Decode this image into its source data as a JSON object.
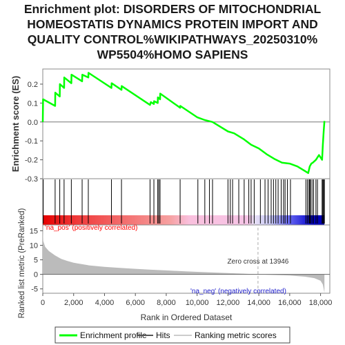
{
  "title_lines": [
    "Enrichment plot: DISORDERS OF MITOCHONDRIAL",
    "HOMEOSTATIS DYNAMICS PROTEIN IMPORT AND",
    "QUALITY CONTROL%WIKIPATHWAYS_20250310%",
    "WP5504%HOMO SAPIENS"
  ],
  "colors": {
    "enrichment_line": "#00ff00",
    "hits": "#000000",
    "metric_fill": "#bbbbbb",
    "zero_line": "#aaaaaa",
    "pos_label": "#ff0000",
    "neg_label": "#2222cc"
  },
  "chart_data": {
    "type": "line",
    "title": "Enrichment plot: DISORDERS OF MITOCHONDRIAL HOMEOSTATIS DYNAMICS PROTEIN IMPORT AND QUALITY CONTROL%WIKIPATHWAYS_20250310% WP5504%HOMO SAPIENS",
    "xlabel": "Rank in Ordered Dataset",
    "x_ticks": [
      0,
      2000,
      4000,
      6000,
      8000,
      10000,
      12000,
      14000,
      16000,
      18000
    ],
    "x_tick_labels": [
      "0",
      "2,000",
      "4,000",
      "6,000",
      "8,000",
      "10,000",
      "12,000",
      "14,000",
      "16,000",
      "18,000"
    ],
    "xlim": [
      0,
      18600
    ],
    "es_panel": {
      "ylabel": "Enrichment score (ES)",
      "ylim": [
        -0.3,
        0.28
      ],
      "y_ticks": [
        0.2,
        0.1,
        0.0,
        -0.1,
        -0.2,
        -0.3
      ],
      "y_tick_labels": [
        "0.2",
        "0.1",
        "0.0",
        "-0.1",
        "-0.2",
        "-0.3"
      ],
      "series_name": "Enrichment profile",
      "points": [
        [
          0,
          0.0
        ],
        [
          20,
          0.12
        ],
        [
          800,
          0.085
        ],
        [
          810,
          0.155
        ],
        [
          1100,
          0.135
        ],
        [
          1110,
          0.2
        ],
        [
          1380,
          0.18
        ],
        [
          1390,
          0.235
        ],
        [
          1850,
          0.205
        ],
        [
          1860,
          0.25
        ],
        [
          2550,
          0.215
        ],
        [
          2560,
          0.25
        ],
        [
          2950,
          0.235
        ],
        [
          2960,
          0.26
        ],
        [
          4450,
          0.18
        ],
        [
          4460,
          0.205
        ],
        [
          5100,
          0.17
        ],
        [
          5110,
          0.19
        ],
        [
          6950,
          0.09
        ],
        [
          7000,
          0.105
        ],
        [
          7200,
          0.095
        ],
        [
          7210,
          0.11
        ],
        [
          7450,
          0.1
        ],
        [
          7460,
          0.13
        ],
        [
          7600,
          0.12
        ],
        [
          7610,
          0.15
        ],
        [
          8900,
          0.075
        ],
        [
          8910,
          0.085
        ],
        [
          10000,
          0.025
        ],
        [
          10500,
          0.01
        ],
        [
          11000,
          0.0
        ],
        [
          12000,
          -0.05
        ],
        [
          12400,
          -0.06
        ],
        [
          13000,
          -0.09
        ],
        [
          13500,
          -0.12
        ],
        [
          14000,
          -0.14
        ],
        [
          14500,
          -0.17
        ],
        [
          15000,
          -0.195
        ],
        [
          15500,
          -0.215
        ],
        [
          16000,
          -0.22
        ],
        [
          16500,
          -0.235
        ],
        [
          17000,
          -0.26
        ],
        [
          17200,
          -0.27
        ],
        [
          17300,
          -0.235
        ],
        [
          17400,
          -0.22
        ],
        [
          17500,
          -0.215
        ],
        [
          17700,
          -0.2
        ],
        [
          17900,
          -0.175
        ],
        [
          18100,
          -0.2
        ],
        [
          18150,
          -0.12
        ],
        [
          18200,
          -0.05
        ],
        [
          18250,
          0.005
        ]
      ]
    },
    "hits": [
      30,
      800,
      1100,
      1380,
      1850,
      2550,
      2950,
      4450,
      5100,
      6950,
      7200,
      7450,
      7520,
      7600,
      8900,
      10050,
      10500,
      10800,
      11000,
      12000,
      12150,
      12300,
      12700,
      13050,
      13350,
      13500,
      13700,
      14100,
      14400,
      14600,
      14800,
      14950,
      15100,
      15250,
      15450,
      15600,
      15700,
      15850,
      16050,
      17050,
      17150,
      17250,
      17300,
      17350,
      17450,
      17550,
      17700,
      17800,
      18100,
      18150,
      18200,
      18250
    ],
    "hits_legend": "Hits",
    "metric_panel": {
      "ylabel": "Ranked list metric (PreRanked)",
      "ylim": [
        -6.5,
        17
      ],
      "y_ticks": [
        15,
        10,
        5,
        0,
        -5
      ],
      "y_tick_labels": [
        "15",
        "10",
        "5",
        "0",
        "-5"
      ],
      "series_name": "Ranking metric scores",
      "curve": [
        [
          0,
          16.5
        ],
        [
          30,
          11.5
        ],
        [
          150,
          9.5
        ],
        [
          400,
          8
        ],
        [
          800,
          6.5
        ],
        [
          1200,
          5.3
        ],
        [
          1600,
          4.6
        ],
        [
          2000,
          4.0
        ],
        [
          3000,
          3.1
        ],
        [
          4000,
          2.6
        ],
        [
          5000,
          2.2
        ],
        [
          6000,
          1.9
        ],
        [
          7000,
          1.6
        ],
        [
          8000,
          1.35
        ],
        [
          9000,
          1.1
        ],
        [
          10000,
          0.85
        ],
        [
          11000,
          0.65
        ],
        [
          12000,
          0.45
        ],
        [
          13000,
          0.25
        ],
        [
          13946,
          0.0
        ],
        [
          15000,
          -0.2
        ],
        [
          16000,
          -0.4
        ],
        [
          17000,
          -0.8
        ],
        [
          17600,
          -1.3
        ],
        [
          18000,
          -2.2
        ],
        [
          18150,
          -3.5
        ],
        [
          18250,
          -6.3
        ]
      ],
      "zero_cross_label": "Zero cross at 13946",
      "zero_cross": 13946,
      "pos_label": "'na_pos' (positively correlated)",
      "neg_label": "'na_neg' (negatively correlated)"
    },
    "legend": [
      "Enrichment profile",
      "Hits",
      "Ranking metric scores"
    ]
  }
}
